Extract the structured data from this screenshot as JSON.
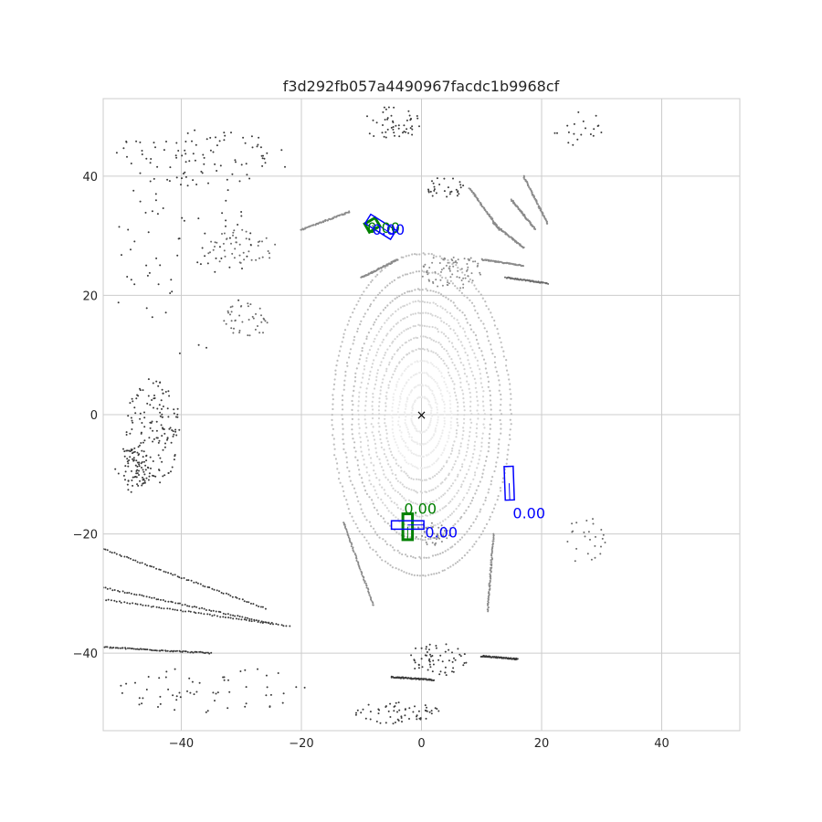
{
  "chart_data": {
    "type": "scatter",
    "title": "f3d292fb057a4490967facdc1b9968cf",
    "xlabel": "",
    "ylabel": "",
    "xlim": [
      -53,
      53
    ],
    "ylim": [
      -53,
      53
    ],
    "grid": true,
    "xticks": [
      -40,
      -20,
      0,
      20,
      40
    ],
    "yticks": [
      -40,
      -20,
      0,
      20,
      40
    ],
    "xtick_labels": [
      "−40",
      "−20",
      "0",
      "20",
      "40"
    ],
    "ytick_labels": [
      "−40",
      "−20",
      "0",
      "20",
      "40"
    ],
    "ego_marker": {
      "x": 0,
      "y": 0,
      "symbol": "×"
    },
    "ground_truth_boxes": [
      {
        "cx": -8.2,
        "cy": 31.8,
        "w": 2.0,
        "l": 1.6,
        "yaw_deg": 30,
        "color": "#008000"
      },
      {
        "cx": -2.3,
        "cy": -18.8,
        "w": 1.6,
        "l": 4.3,
        "yaw_deg": 0,
        "color": "#008000"
      }
    ],
    "predicted_boxes": [
      {
        "cx": -6.8,
        "cy": 31.5,
        "w": 1.8,
        "l": 5.0,
        "yaw_deg": 58,
        "color": "#0000ff"
      },
      {
        "cx": -2.3,
        "cy": -18.5,
        "w": 1.4,
        "l": 5.4,
        "yaw_deg": 90,
        "color": "#0000ff"
      },
      {
        "cx": 14.6,
        "cy": -11.5,
        "w": 1.5,
        "l": 5.6,
        "yaw_deg": 2,
        "color": "#0000ff"
      }
    ],
    "score_labels": [
      {
        "x": -9.0,
        "y": 30.5,
        "text": "0.00",
        "color": "#008000"
      },
      {
        "x": -8.2,
        "y": 30.2,
        "text": "0.00",
        "color": "#0000ff"
      },
      {
        "x": -2.9,
        "y": -16.6,
        "text": "0.00",
        "color": "#008000"
      },
      {
        "x": 0.6,
        "y": -20.6,
        "text": "0.00",
        "color": "#0000ff"
      },
      {
        "x": 15.2,
        "y": -17.4,
        "text": "0.00",
        "color": "#0000ff"
      }
    ],
    "point_cloud": {
      "colors": {
        "near": "#ececec",
        "mid": "#bdbdbd",
        "far": "#8a8a8a",
        "farthest": "#3a3a3a"
      },
      "ring_center": [
        0,
        0
      ],
      "ring_radii": [
        3,
        5,
        7,
        9,
        11,
        13,
        15,
        17,
        19,
        21,
        24,
        27
      ],
      "ring_aspect": 0.55,
      "scan_lines": [
        {
          "from": [
            -53,
            -22.5
          ],
          "to": [
            -26,
            -32.5
          ],
          "color": "#3a3a3a"
        },
        {
          "from": [
            -53,
            -29
          ],
          "to": [
            -25,
            -35
          ],
          "color": "#3a3a3a"
        },
        {
          "from": [
            -53,
            -31
          ],
          "to": [
            -22,
            -35.5
          ],
          "color": "#3a3a3a"
        },
        {
          "from": [
            -53,
            -39
          ],
          "to": [
            -35,
            -40
          ],
          "color": "#3a3a3a"
        },
        {
          "from": [
            -20,
            31
          ],
          "to": [
            -12,
            34
          ],
          "color": "#8a8a8a"
        },
        {
          "from": [
            -10,
            23
          ],
          "to": [
            -4,
            26
          ],
          "color": "#8a8a8a"
        },
        {
          "from": [
            10,
            26
          ],
          "to": [
            17,
            25
          ],
          "color": "#8a8a8a"
        },
        {
          "from": [
            14,
            23
          ],
          "to": [
            21,
            22
          ],
          "color": "#6a6a6a"
        },
        {
          "from": [
            12,
            -20
          ],
          "to": [
            11,
            -33
          ],
          "color": "#8a8a8a"
        },
        {
          "from": [
            -13,
            -18
          ],
          "to": [
            -8,
            -32
          ],
          "color": "#8a8a8a"
        },
        {
          "from": [
            -5,
            -44
          ],
          "to": [
            2,
            -44.5
          ],
          "color": "#3a3a3a"
        },
        {
          "from": [
            10,
            -40.5
          ],
          "to": [
            16,
            -41
          ],
          "color": "#3a3a3a"
        },
        {
          "from": [
            12,
            32
          ],
          "to": [
            17,
            28
          ],
          "color": "#8a8a8a"
        },
        {
          "from": [
            15,
            36
          ],
          "to": [
            19,
            31
          ],
          "color": "#8a8a8a"
        },
        {
          "from": [
            17,
            40
          ],
          "to": [
            21,
            32
          ],
          "color": "#8a8a8a"
        },
        {
          "from": [
            8,
            38
          ],
          "to": [
            13,
            31
          ],
          "color": "#8a8a8a"
        }
      ],
      "clusters": [
        {
          "cx": -45,
          "cy": -3,
          "rx": 5,
          "ry": 9,
          "n": 160,
          "color": "#3a3a3a"
        },
        {
          "cx": -48,
          "cy": -9,
          "rx": 3,
          "ry": 4,
          "n": 60,
          "color": "#3a3a3a"
        },
        {
          "cx": -37,
          "cy": 43,
          "rx": 15,
          "ry": 5,
          "n": 90,
          "color": "#3a3a3a"
        },
        {
          "cx": -30,
          "cy": 28,
          "rx": 6,
          "ry": 3,
          "n": 50,
          "color": "#6a6a6a"
        },
        {
          "cx": -29,
          "cy": 16,
          "rx": 4,
          "ry": 3,
          "n": 40,
          "color": "#6a6a6a"
        },
        {
          "cx": -5,
          "cy": 49,
          "rx": 5,
          "ry": 3,
          "n": 50,
          "color": "#3a3a3a"
        },
        {
          "cx": 5,
          "cy": 24,
          "rx": 5,
          "ry": 3,
          "n": 80,
          "color": "#8a8a8a"
        },
        {
          "cx": 4,
          "cy": 38,
          "rx": 3,
          "ry": 2,
          "n": 30,
          "color": "#3a3a3a"
        },
        {
          "cx": 3,
          "cy": -41,
          "rx": 5,
          "ry": 3,
          "n": 60,
          "color": "#3a3a3a"
        },
        {
          "cx": -4,
          "cy": -50,
          "rx": 7,
          "ry": 2,
          "n": 60,
          "color": "#3a3a3a"
        },
        {
          "cx": -35,
          "cy": -46,
          "rx": 16,
          "ry": 4,
          "n": 60,
          "color": "#3a3a3a"
        },
        {
          "cx": 27,
          "cy": -21,
          "rx": 4,
          "ry": 4,
          "n": 25,
          "color": "#6a6a6a"
        },
        {
          "cx": 27,
          "cy": 48,
          "rx": 5,
          "ry": 3,
          "n": 20,
          "color": "#3a3a3a"
        },
        {
          "cx": 2,
          "cy": -20,
          "rx": 3,
          "ry": 2,
          "n": 40,
          "color": "#8a8a8a"
        },
        {
          "cx": -40,
          "cy": 26,
          "rx": 12,
          "ry": 16,
          "n": 70,
          "color": "#3a3a3a"
        }
      ]
    }
  }
}
